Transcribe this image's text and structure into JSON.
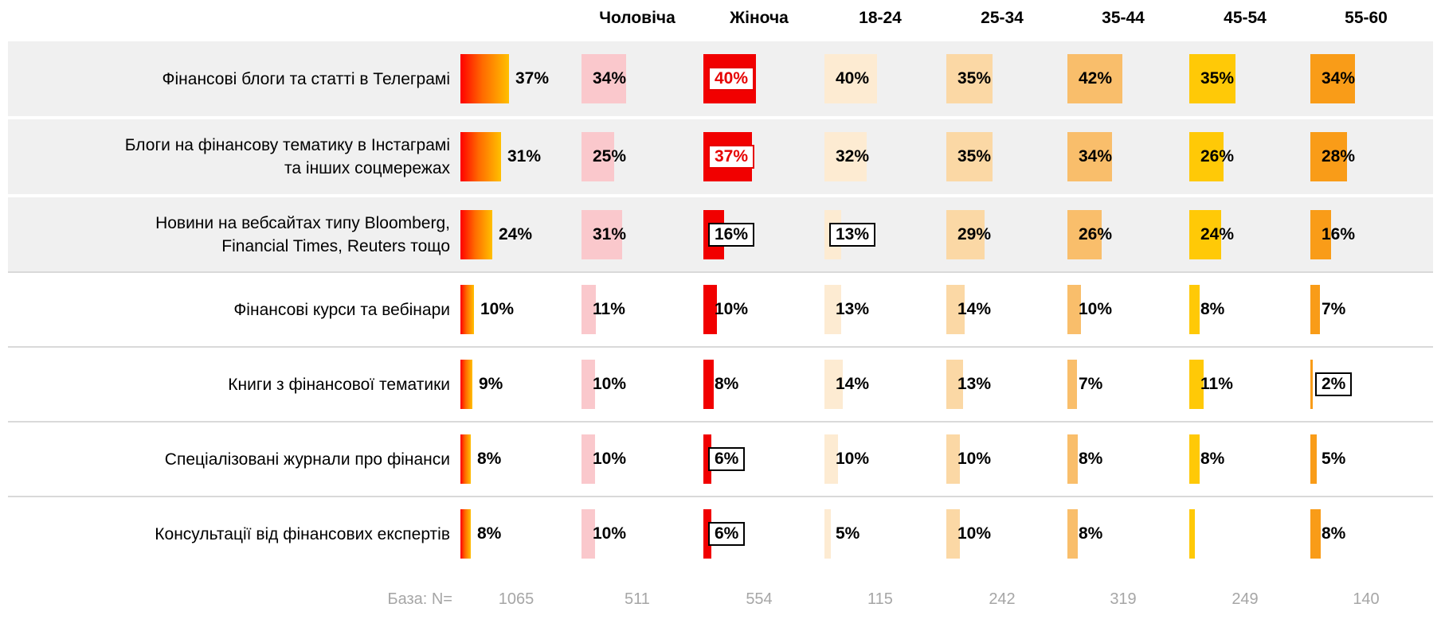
{
  "chart_data": {
    "type": "table",
    "title": "",
    "description": "Horizontal bar crosstab: sources of financial information by gender and age group, values in percent",
    "columns": [
      {
        "name": "total",
        "header": "",
        "bar_color": "gradient"
      },
      {
        "name": "male",
        "header": "Чоловіча",
        "bar_color": "#FAC8CC"
      },
      {
        "name": "female",
        "header": "Жіноча",
        "bar_color": "#F10000"
      },
      {
        "name": "age-18-24",
        "header": "18-24",
        "bar_color": "#FDEBD2"
      },
      {
        "name": "age-25-34",
        "header": "25-34",
        "bar_color": "#FBD8A5"
      },
      {
        "name": "age-35-44",
        "header": "35-44",
        "bar_color": "#F9BE6B"
      },
      {
        "name": "age-45-54",
        "header": "45-54",
        "bar_color": "#FFC907"
      },
      {
        "name": "age-55-60",
        "header": "55-60",
        "bar_color": "#F99C18"
      }
    ],
    "rows": [
      {
        "label_lines": [
          "Фінансові блоги та статті в Телеграмі"
        ],
        "shaded": true,
        "cells": [
          {
            "v": 37
          },
          {
            "v": 34
          },
          {
            "v": 40,
            "box": "red"
          },
          {
            "v": 40
          },
          {
            "v": 35
          },
          {
            "v": 42
          },
          {
            "v": 35
          },
          {
            "v": 34
          }
        ]
      },
      {
        "label_lines": [
          "Блоги на фінансову тематику в Інстаграмі",
          "та інших соцмережах"
        ],
        "shaded": true,
        "cells": [
          {
            "v": 31
          },
          {
            "v": 25
          },
          {
            "v": 37,
            "box": "red"
          },
          {
            "v": 32
          },
          {
            "v": 35
          },
          {
            "v": 34
          },
          {
            "v": 26
          },
          {
            "v": 28
          }
        ]
      },
      {
        "label_lines": [
          "Новини на вебсайтах типу Bloomberg,",
          "Financial Times, Reuters тощо"
        ],
        "shaded": true,
        "cells": [
          {
            "v": 24
          },
          {
            "v": 31
          },
          {
            "v": 16,
            "box": "black"
          },
          {
            "v": 13,
            "box": "black"
          },
          {
            "v": 29
          },
          {
            "v": 26
          },
          {
            "v": 24
          },
          {
            "v": 16
          }
        ]
      },
      {
        "label_lines": [
          "Фінансові курси та вебінари"
        ],
        "shaded": false,
        "cells": [
          {
            "v": 10
          },
          {
            "v": 11
          },
          {
            "v": 10
          },
          {
            "v": 13
          },
          {
            "v": 14
          },
          {
            "v": 10
          },
          {
            "v": 8
          },
          {
            "v": 7
          }
        ]
      },
      {
        "label_lines": [
          "Книги з фінансової тематики"
        ],
        "shaded": false,
        "cells": [
          {
            "v": 9
          },
          {
            "v": 10
          },
          {
            "v": 8
          },
          {
            "v": 14
          },
          {
            "v": 13
          },
          {
            "v": 7
          },
          {
            "v": 11
          },
          {
            "v": 2,
            "box": "black"
          }
        ]
      },
      {
        "label_lines": [
          "Спеціалізовані журнали про фінанси"
        ],
        "shaded": false,
        "cells": [
          {
            "v": 8
          },
          {
            "v": 10
          },
          {
            "v": 6,
            "box": "black"
          },
          {
            "v": 10
          },
          {
            "v": 10
          },
          {
            "v": 8
          },
          {
            "v": 8
          },
          {
            "v": 5
          }
        ]
      },
      {
        "label_lines": [
          "Консультації від фінансових експертів"
        ],
        "shaded": false,
        "cells": [
          {
            "v": 8
          },
          {
            "v": 10
          },
          {
            "v": 6,
            "box": "black"
          },
          {
            "v": 5
          },
          {
            "v": 10
          },
          {
            "v": 8
          },
          {
            "v": 4,
            "no_label": true
          },
          {
            "v": 8
          }
        ]
      }
    ],
    "base_row": {
      "label": "База: N=",
      "values": [
        1065,
        511,
        554,
        115,
        242,
        319,
        249,
        140
      ]
    },
    "colors": {
      "gradient_start": "#FF0000",
      "gradient_mid": "#FF6A00",
      "gradient_end": "#FFC000",
      "row_shade": "#F0F0F0",
      "divider": "#D9D9D9",
      "base_text": "#A6A6A6",
      "box_high": "#E60000",
      "box_low": "#000000",
      "value_text": "#000000"
    },
    "legend_position": "none",
    "grid": false
  }
}
